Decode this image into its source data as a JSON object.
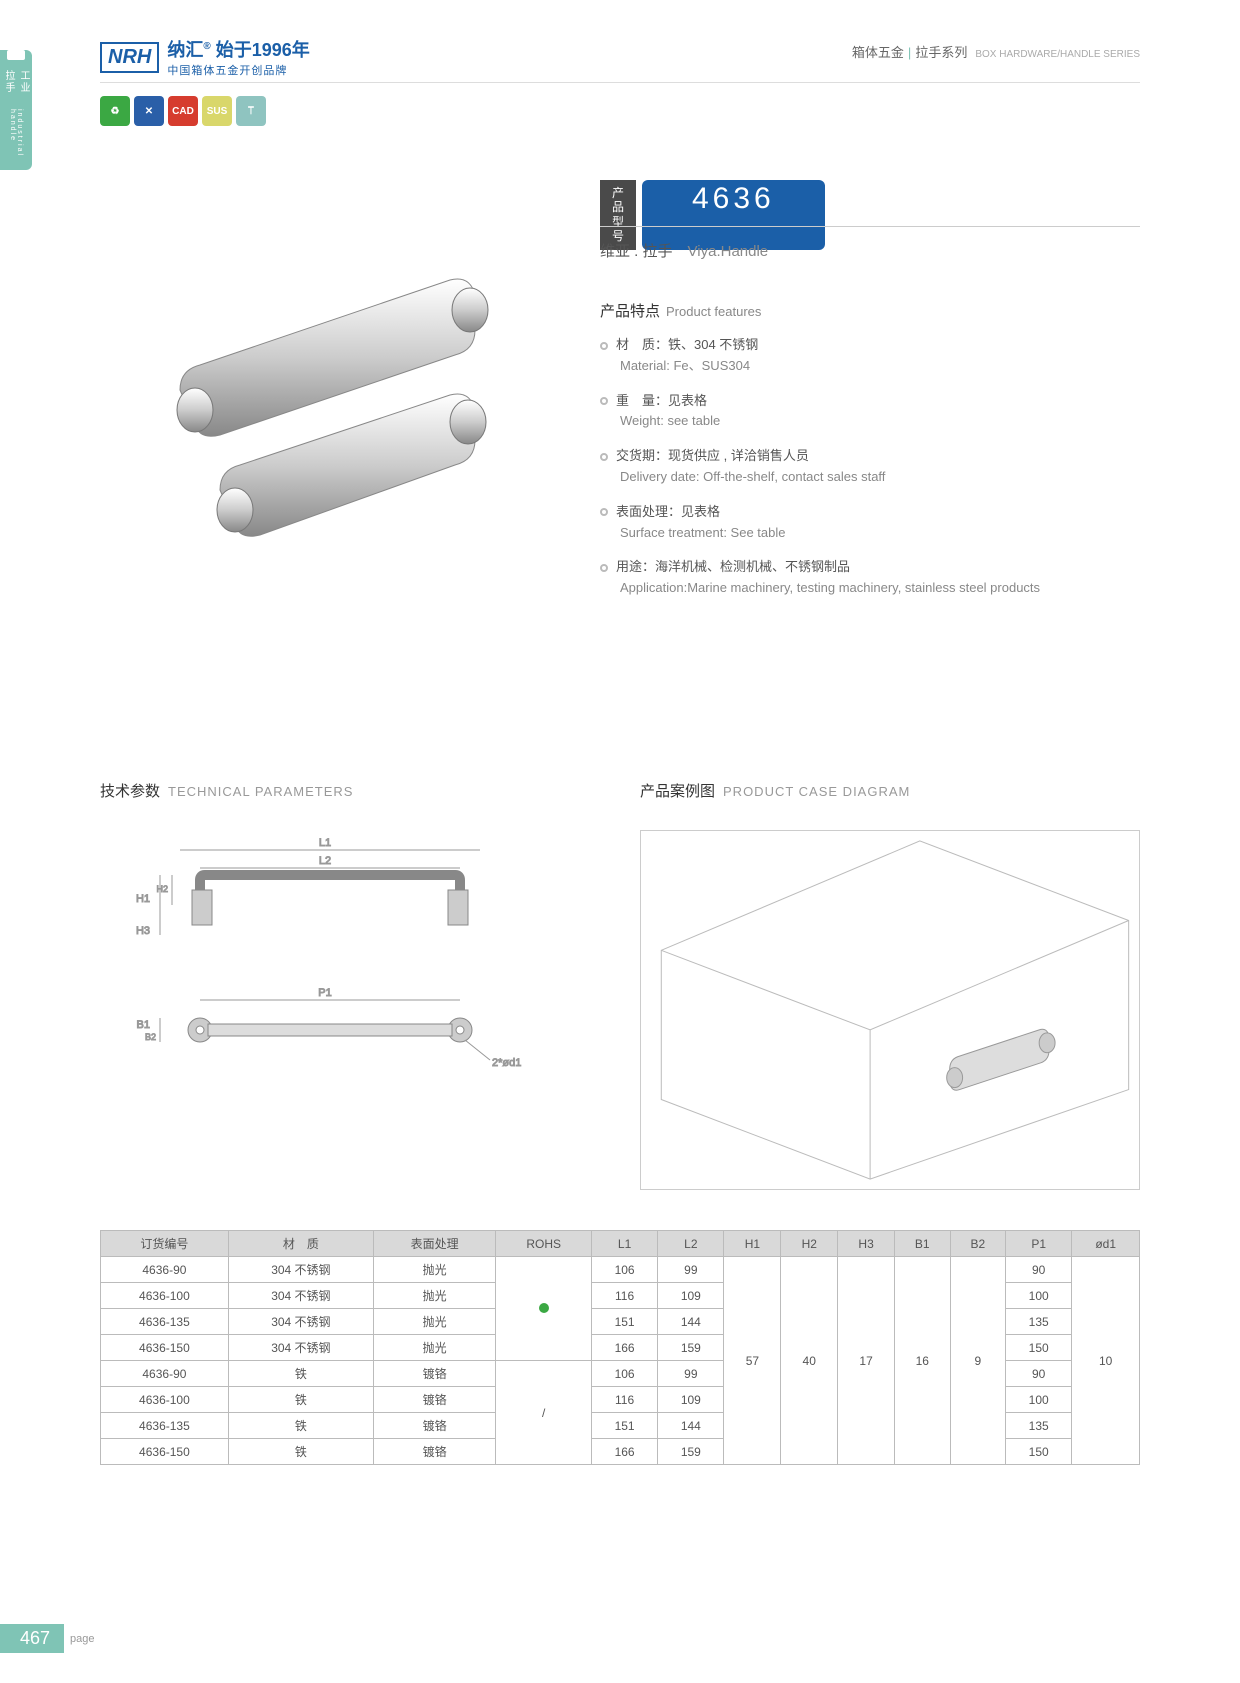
{
  "header": {
    "logo_brand": "NRH",
    "logo_cn": "纳汇",
    "logo_year": "始于1996年",
    "logo_sub": "中国箱体五金开创品牌",
    "category_cn": "箱体五金",
    "category_sub": "拉手系列",
    "category_en": "BOX HARDWARE/HANDLE SERIES"
  },
  "side_tab": {
    "cn": "工业拉手",
    "en": "industrial handle"
  },
  "model": {
    "label": "产品型号",
    "number": "4636",
    "name_cn": "维亚 . 拉手",
    "name_en": "Viya.Handle"
  },
  "features": {
    "title_cn": "产品特点",
    "title_en": "Product features",
    "items": [
      {
        "cn": "材　质：铁、304 不锈钢",
        "en": "Material: Fe、SUS304"
      },
      {
        "cn": "重　量：见表格",
        "en": "Weight: see table"
      },
      {
        "cn": "交货期：现货供应 , 详洽销售人员",
        "en": "Delivery date: Off-the-shelf, contact sales staff"
      },
      {
        "cn": "表面处理：见表格",
        "en": "Surface treatment: See table"
      },
      {
        "cn": "用途：海洋机械、检测机械、不锈钢制品",
        "en": "Application:Marine machinery, testing machinery, stainless steel products"
      }
    ]
  },
  "tech": {
    "title_cn": "技术参数",
    "title_en": "TECHNICAL PARAMETERS",
    "dims": [
      "L1",
      "L2",
      "H1",
      "H2",
      "H3",
      "B1",
      "B2",
      "P1",
      "2*ød1"
    ]
  },
  "case": {
    "title_cn": "产品案例图",
    "title_en": "PRODUCT CASE DIAGRAM"
  },
  "table": {
    "headers": [
      "订货编号",
      "材　质",
      "表面处理",
      "ROHS",
      "L1",
      "L2",
      "H1",
      "H2",
      "H3",
      "B1",
      "B2",
      "P1",
      "ød1"
    ],
    "rohs_groups": [
      "dot",
      "/"
    ],
    "shared": {
      "H1": "57",
      "H2": "40",
      "H3": "17",
      "B1": "16",
      "B2": "9",
      "od1": "10"
    },
    "rows": [
      {
        "code": "4636-90",
        "mat": "304 不锈钢",
        "surf": "抛光",
        "L1": "106",
        "L2": "99",
        "P1": "90"
      },
      {
        "code": "4636-100",
        "mat": "304 不锈钢",
        "surf": "抛光",
        "L1": "116",
        "L2": "109",
        "P1": "100"
      },
      {
        "code": "4636-135",
        "mat": "304 不锈钢",
        "surf": "抛光",
        "L1": "151",
        "L2": "144",
        "P1": "135"
      },
      {
        "code": "4636-150",
        "mat": "304 不锈钢",
        "surf": "抛光",
        "L1": "166",
        "L2": "159",
        "P1": "150"
      },
      {
        "code": "4636-90",
        "mat": "铁",
        "surf": "镀铬",
        "L1": "106",
        "L2": "99",
        "P1": "90"
      },
      {
        "code": "4636-100",
        "mat": "铁",
        "surf": "镀铬",
        "L1": "116",
        "L2": "109",
        "P1": "100"
      },
      {
        "code": "4636-135",
        "mat": "铁",
        "surf": "镀铬",
        "L1": "151",
        "L2": "144",
        "P1": "135"
      },
      {
        "code": "4636-150",
        "mat": "铁",
        "surf": "镀铬",
        "L1": "166",
        "L2": "159",
        "P1": "150"
      }
    ]
  },
  "footer": {
    "page": "467",
    "label": "page"
  },
  "colors": {
    "brand": "#1b5fa8",
    "accent": "#7fc4b5",
    "grey": "#d9d9d9"
  }
}
